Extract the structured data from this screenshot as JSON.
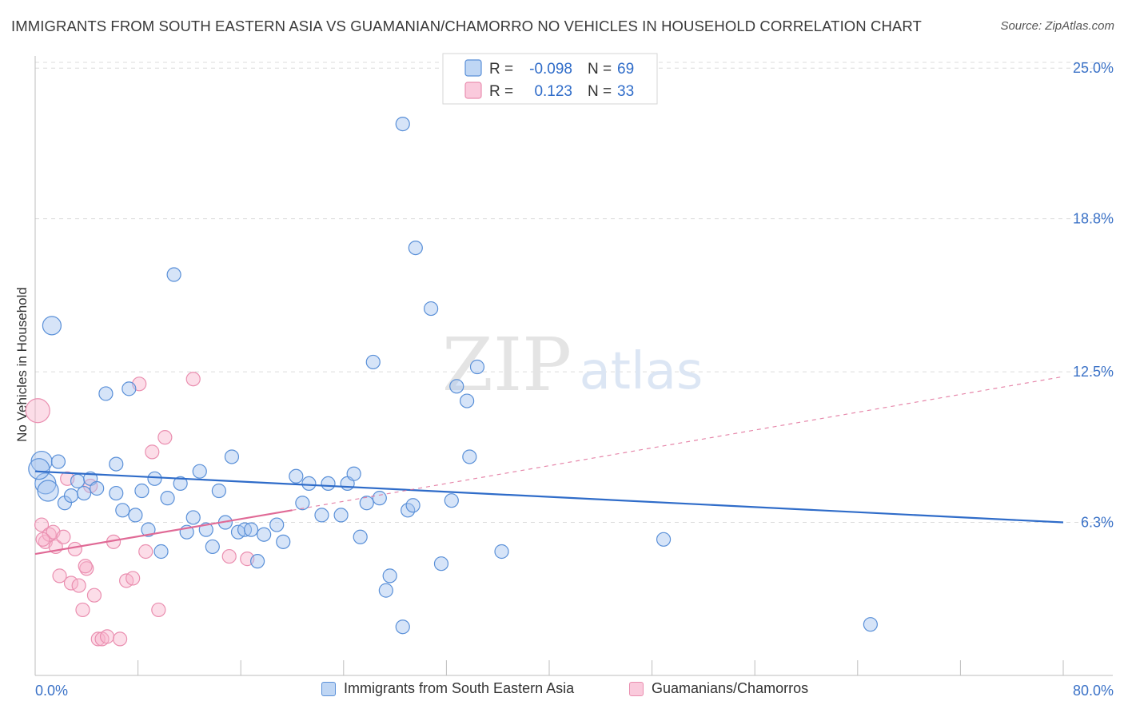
{
  "title": "IMMIGRANTS FROM SOUTH EASTERN ASIA VS GUAMANIAN/CHAMORRO NO VEHICLES IN HOUSEHOLD CORRELATION CHART",
  "source": "Source: ZipAtlas.com",
  "watermark": {
    "zip": "ZIP",
    "atlas": "atlas"
  },
  "colors": {
    "blue": "#5a90d8",
    "blue_fill": "rgba(164,196,240,0.45)",
    "blue_line": "#2f6cc9",
    "pink": "#ea8fb0",
    "pink_fill": "rgba(248,180,205,0.45)",
    "pink_line": "#e06a96",
    "tick_label": "#3b72c7",
    "grid": "#dcdcdc"
  },
  "legend": {
    "items": [
      {
        "r_label": "R =",
        "r_value": "-0.098",
        "n_label": "N =",
        "n_value": "69",
        "color": "blue"
      },
      {
        "r_label": "R =",
        "r_value": "0.123",
        "n_label": "N =",
        "n_value": "33",
        "color": "pink"
      }
    ]
  },
  "bottom_legend": [
    "Immigrants from South Eastern Asia",
    "Guamanians/Chamorros"
  ],
  "chart_data": {
    "type": "scatter",
    "title": "IMMIGRANTS FROM SOUTH EASTERN ASIA VS GUAMANIAN/CHAMORRO NO VEHICLES IN HOUSEHOLD CORRELATION CHART",
    "xlabel": "",
    "ylabel": "No Vehicles in Household",
    "xlim": [
      0,
      80
    ],
    "ylim": [
      0,
      25.5
    ],
    "x_tick_labels": [
      "0.0%",
      "80.0%"
    ],
    "y_ticks": [
      6.3,
      12.5,
      18.8,
      25.0
    ],
    "y_tick_labels": [
      "6.3%",
      "12.5%",
      "18.8%",
      "25.0%"
    ],
    "grid": "horizontal dashed",
    "legend_position": "top-center",
    "series": [
      {
        "name": "Immigrants from South Eastern Asia",
        "color": "blue",
        "R": -0.098,
        "N": 69,
        "trend": {
          "x": [
            0,
            80
          ],
          "y": [
            8.4,
            6.3
          ]
        },
        "points": [
          [
            0.5,
            8.8
          ],
          [
            0.8,
            7.9
          ],
          [
            1.3,
            14.4
          ],
          [
            1.8,
            8.8
          ],
          [
            2.3,
            7.1
          ],
          [
            2.8,
            7.4
          ],
          [
            3.3,
            8.0
          ],
          [
            3.8,
            7.5
          ],
          [
            4.3,
            8.1
          ],
          [
            4.8,
            7.7
          ],
          [
            5.5,
            11.6
          ],
          [
            6.3,
            7.5
          ],
          [
            6.3,
            8.7
          ],
          [
            6.8,
            6.8
          ],
          [
            7.3,
            11.8
          ],
          [
            7.8,
            6.6
          ],
          [
            8.3,
            7.6
          ],
          [
            8.8,
            6.0
          ],
          [
            9.3,
            8.1
          ],
          [
            9.8,
            5.1
          ],
          [
            10.3,
            7.3
          ],
          [
            10.8,
            16.5
          ],
          [
            11.3,
            7.9
          ],
          [
            11.8,
            5.9
          ],
          [
            12.3,
            6.5
          ],
          [
            12.8,
            8.4
          ],
          [
            13.3,
            6.0
          ],
          [
            13.8,
            5.3
          ],
          [
            14.3,
            7.6
          ],
          [
            14.8,
            6.3
          ],
          [
            15.3,
            9.0
          ],
          [
            15.8,
            5.9
          ],
          [
            16.3,
            6.0
          ],
          [
            16.8,
            6.0
          ],
          [
            17.3,
            4.7
          ],
          [
            17.8,
            5.8
          ],
          [
            18.8,
            6.2
          ],
          [
            19.3,
            5.5
          ],
          [
            20.3,
            8.2
          ],
          [
            20.8,
            7.1
          ],
          [
            21.3,
            7.9
          ],
          [
            22.3,
            6.6
          ],
          [
            22.8,
            7.9
          ],
          [
            23.8,
            6.6
          ],
          [
            24.3,
            7.9
          ],
          [
            24.8,
            8.3
          ],
          [
            25.3,
            5.7
          ],
          [
            25.8,
            7.1
          ],
          [
            26.3,
            12.9
          ],
          [
            26.8,
            7.3
          ],
          [
            27.3,
            3.5
          ],
          [
            27.6,
            4.1
          ],
          [
            28.6,
            22.7
          ],
          [
            28.6,
            2.0
          ],
          [
            29.0,
            6.8
          ],
          [
            29.4,
            7.0
          ],
          [
            29.6,
            17.6
          ],
          [
            30.8,
            15.1
          ],
          [
            31.6,
            4.6
          ],
          [
            32.4,
            7.2
          ],
          [
            32.8,
            11.9
          ],
          [
            33.6,
            11.3
          ],
          [
            33.8,
            9.0
          ],
          [
            34.4,
            12.7
          ],
          [
            36.3,
            5.1
          ],
          [
            48.9,
            5.6
          ],
          [
            65.0,
            2.1
          ],
          [
            0.3,
            8.5
          ],
          [
            1.0,
            7.6
          ]
        ]
      },
      {
        "name": "Guamanians/Chamorros",
        "color": "pink",
        "R": 0.123,
        "N": 33,
        "trend": {
          "x": [
            0,
            20.0
          ],
          "y": [
            5.0,
            6.8
          ],
          "dashed_extension": {
            "x": [
              20.0,
              80
            ],
            "y": [
              6.8,
              12.3
            ]
          }
        },
        "points": [
          [
            0.2,
            10.9
          ],
          [
            0.5,
            6.2
          ],
          [
            0.8,
            5.5
          ],
          [
            1.1,
            5.8
          ],
          [
            1.4,
            5.9
          ],
          [
            1.6,
            5.3
          ],
          [
            1.9,
            4.1
          ],
          [
            2.2,
            5.7
          ],
          [
            2.5,
            8.1
          ],
          [
            2.8,
            3.8
          ],
          [
            3.1,
            5.2
          ],
          [
            3.4,
            3.7
          ],
          [
            3.7,
            2.7
          ],
          [
            4.0,
            4.4
          ],
          [
            4.3,
            7.8
          ],
          [
            4.6,
            3.3
          ],
          [
            4.9,
            1.5
          ],
          [
            5.2,
            1.5
          ],
          [
            5.6,
            1.6
          ],
          [
            6.1,
            5.5
          ],
          [
            6.6,
            1.5
          ],
          [
            7.1,
            3.9
          ],
          [
            7.6,
            4.0
          ],
          [
            8.1,
            12.0
          ],
          [
            8.6,
            5.1
          ],
          [
            9.1,
            9.2
          ],
          [
            9.6,
            2.7
          ],
          [
            10.1,
            9.8
          ],
          [
            12.3,
            12.2
          ],
          [
            15.1,
            4.9
          ],
          [
            16.5,
            4.8
          ],
          [
            3.9,
            4.5
          ],
          [
            0.6,
            5.6
          ]
        ]
      }
    ]
  }
}
